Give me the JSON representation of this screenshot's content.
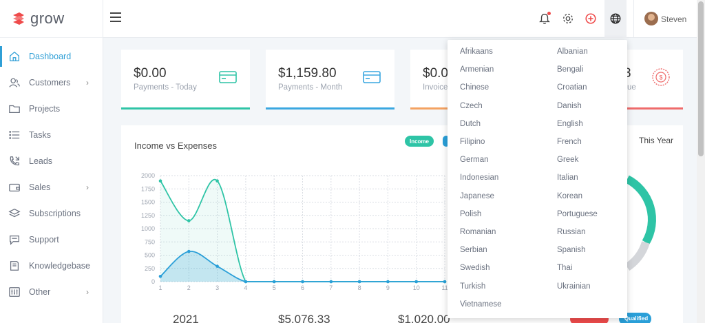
{
  "app": {
    "name": "grow"
  },
  "sidebar": {
    "items": [
      {
        "label": "Dashboard",
        "icon": "home-icon",
        "active": true,
        "has_children": false
      },
      {
        "label": "Customers",
        "icon": "users-icon",
        "active": false,
        "has_children": true
      },
      {
        "label": "Projects",
        "icon": "folder-icon",
        "active": false,
        "has_children": false
      },
      {
        "label": "Tasks",
        "icon": "list-icon",
        "active": false,
        "has_children": false
      },
      {
        "label": "Leads",
        "icon": "phone-icon",
        "active": false,
        "has_children": false
      },
      {
        "label": "Sales",
        "icon": "wallet-icon",
        "active": false,
        "has_children": true
      },
      {
        "label": "Subscriptions",
        "icon": "layers-icon",
        "active": false,
        "has_children": false
      },
      {
        "label": "Support",
        "icon": "chat-icon",
        "active": false,
        "has_children": false
      },
      {
        "label": "Knowledgebase",
        "icon": "book-icon",
        "active": false,
        "has_children": false
      },
      {
        "label": "Other",
        "icon": "sliders-icon",
        "active": false,
        "has_children": true
      }
    ]
  },
  "header": {
    "username": "Steven"
  },
  "cards": [
    {
      "amount": "$0.00",
      "label": "Payments - Today",
      "color": "#2ec4a6"
    },
    {
      "amount": "$1,159.80",
      "label": "Payments - Month",
      "color": "#3aa7e0"
    },
    {
      "amount": "$0.0",
      "label": "Invoice",
      "color": "#f4a261"
    },
    {
      "amount": "3",
      "label": "ue",
      "color": "#ef6b6b"
    }
  ],
  "panel": {
    "title": "Income vs Expenses",
    "legend": [
      {
        "label": "Income",
        "color": "#2ec4a6"
      }
    ],
    "period": "This Year",
    "footer": [
      "2021",
      "$5,076.33",
      "$1,020.00"
    ],
    "badge": "Qualified"
  },
  "chart_data": {
    "type": "line",
    "x": [
      1,
      2,
      3,
      4,
      5,
      6,
      7,
      8,
      9,
      10,
      11
    ],
    "xticks": [
      "1",
      "2",
      "3",
      "4",
      "5",
      "6",
      "7",
      "8",
      "9",
      "10",
      "11"
    ],
    "ylim": [
      0,
      2000
    ],
    "yticks": [
      "0",
      "250",
      "500",
      "750",
      "1000",
      "1250",
      "1500",
      "1750",
      "2000"
    ],
    "grid": true,
    "series": [
      {
        "color": "#2ec4a6",
        "values": [
          1900,
          1150,
          1900,
          0,
          0,
          0,
          0,
          0,
          0,
          0,
          0
        ]
      },
      {
        "color": "#2a9fd8",
        "values": [
          100,
          570,
          290,
          0,
          0,
          0,
          0,
          0,
          0,
          0,
          0
        ]
      }
    ]
  },
  "languages": {
    "left": [
      "Afrikaans",
      "Armenian",
      "Chinese",
      "Czech",
      "Dutch",
      "Filipino",
      "German",
      "Indonesian",
      "Japanese",
      "Polish",
      "Romanian",
      "Serbian",
      "Swedish",
      "Turkish",
      "Vietnamese"
    ],
    "right": [
      "Albanian",
      "Bengali",
      "Croatian",
      "Danish",
      "English",
      "French",
      "Greek",
      "Italian",
      "Korean",
      "Portuguese",
      "Russian",
      "Spanish",
      "Thai",
      "Ukrainian"
    ]
  }
}
